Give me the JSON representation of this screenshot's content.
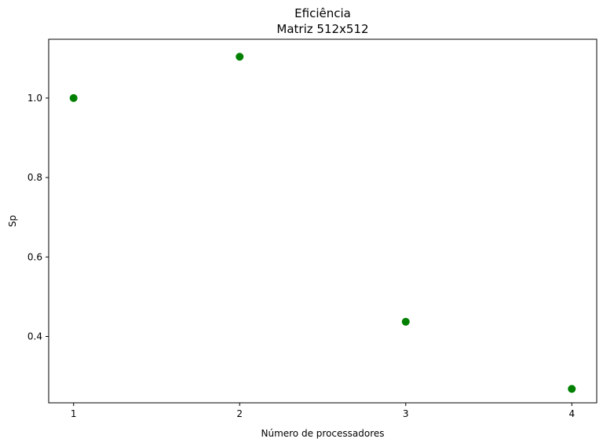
{
  "chart_data": {
    "type": "scatter",
    "title": "Eficiência",
    "subtitle": "Matriz 512x512",
    "xlabel": "Número de processadores",
    "ylabel": "Sp",
    "x": [
      1,
      2,
      3,
      4
    ],
    "y": [
      1.0,
      1.104,
      0.437,
      0.268
    ],
    "xlim": [
      0.85,
      4.15
    ],
    "ylim": [
      0.233,
      1.148
    ],
    "xticks": [
      1,
      2,
      3,
      4
    ],
    "yticks": [
      0.4,
      0.6,
      0.8,
      1.0
    ],
    "ytick_labels": [
      "0.4",
      "0.6",
      "0.8",
      "1.0"
    ],
    "grid": false,
    "marker_color": "#008000"
  }
}
